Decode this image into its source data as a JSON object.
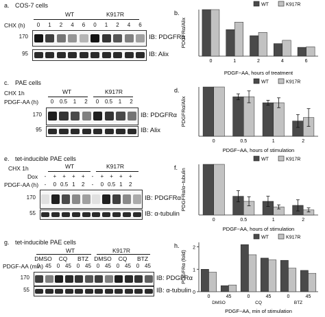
{
  "panels": {
    "a": {
      "label": "a.",
      "title": "COS-7 cells",
      "treatment_label": "CHX (h)",
      "groups": [
        "WT",
        "K917R"
      ],
      "lanes": [
        "0",
        "1",
        "2",
        "4",
        "6",
        "0",
        "1",
        "2",
        "4",
        "6"
      ],
      "blots": [
        {
          "mw": "170",
          "ib": "IB: PDGFRα",
          "intensity": [
            1.0,
            0.8,
            0.55,
            0.4,
            0.25,
            1.0,
            0.85,
            0.7,
            0.5,
            0.35
          ]
        },
        {
          "mw": "95",
          "ib": "IB: Alix",
          "intensity": [
            0.9,
            0.9,
            0.9,
            0.9,
            0.9,
            0.9,
            0.9,
            0.9,
            0.9,
            0.9
          ]
        }
      ]
    },
    "c": {
      "label": "c.",
      "title": "PAE cells",
      "treatment_label": "CHX 1h",
      "row_label": "PDGF-AA (h)",
      "groups": [
        "WT",
        "K917R"
      ],
      "lanes": [
        "0",
        "0.5",
        "1",
        "2",
        "0",
        "0.5",
        "1",
        "2"
      ],
      "blots": [
        {
          "mw": "170",
          "ib": "IB: PDGFRα",
          "intensity": [
            0.95,
            0.85,
            0.75,
            0.5,
            0.95,
            0.85,
            0.75,
            0.55
          ]
        },
        {
          "mw": "95",
          "ib": "IB: Alix",
          "intensity": [
            0.9,
            0.9,
            0.9,
            0.9,
            0.9,
            0.9,
            0.9,
            0.9
          ]
        }
      ]
    },
    "e": {
      "label": "e.",
      "title": "tet-inducible PAE cells",
      "treatment_label": "CHX 1h",
      "row_labels": [
        "Dox",
        "PDGF-AA (h)"
      ],
      "groups": [
        "WT",
        "K917R"
      ],
      "dox": [
        "-",
        "+",
        "+",
        "+",
        "+",
        "-",
        "+",
        "+",
        "+",
        "+"
      ],
      "lanes": [
        "-",
        "0",
        "0.5",
        "1",
        "2",
        "-",
        "0",
        "0.5",
        "1",
        "2"
      ],
      "blots": [
        {
          "mw": "170",
          "ib": "IB: PDGFRα",
          "intensity": [
            0.05,
            0.95,
            0.75,
            0.45,
            0.35,
            0.05,
            0.95,
            0.8,
            0.45,
            0.3
          ]
        },
        {
          "mw": "55",
          "ib": "IB: α-tubulin",
          "intensity": [
            0.9,
            0.9,
            0.9,
            0.9,
            0.9,
            0.9,
            0.9,
            0.9,
            0.9,
            0.9
          ]
        }
      ]
    },
    "g": {
      "label": "g.",
      "title": "tet-inducible PAE cells",
      "row_label": "PDGF-AA (min)",
      "groups": [
        "WT",
        "K917R"
      ],
      "treatments": [
        "DMSO",
        "CQ",
        "BTZ",
        "DMSO",
        "CQ",
        "BTZ"
      ],
      "lanes": [
        "0",
        "45",
        "0",
        "45",
        "0",
        "45",
        "0",
        "45",
        "0",
        "45",
        "0",
        "45"
      ],
      "blots": [
        {
          "mw": "170",
          "ib": "IB: PDGFRα",
          "intensity": [
            0.8,
            0.5,
            0.95,
            0.9,
            0.85,
            0.7,
            0.8,
            0.5,
            0.95,
            0.9,
            0.85,
            0.65
          ]
        },
        {
          "mw": "55",
          "ib": "IB: α-tubulin",
          "intensity": [
            0.9,
            0.9,
            0.9,
            0.9,
            0.9,
            0.9,
            0.9,
            0.9,
            0.9,
            0.9,
            0.9,
            0.9
          ]
        }
      ]
    }
  },
  "colors": {
    "wt": "#4a4a4a",
    "k917r": "#c2c2c2",
    "axis": "#222222"
  },
  "chart_data": [
    {
      "id": "b",
      "label": "b.",
      "type": "bar",
      "categories": [
        "0",
        "1",
        "2",
        "4",
        "6"
      ],
      "series": [
        {
          "name": "WT",
          "values": [
            1.0,
            0.57,
            0.44,
            0.27,
            0.19
          ]
        },
        {
          "name": "K917R",
          "values": [
            1.0,
            0.73,
            0.51,
            0.34,
            0.2
          ]
        }
      ],
      "xlabel": "PDGF−AA, hours of treatment",
      "ylabel": "PDGFRα/Alix",
      "ylim": [
        0,
        1.0
      ],
      "legend": "top"
    },
    {
      "id": "d",
      "label": "d.",
      "type": "bar",
      "categories": [
        "0",
        "0.5",
        "1",
        "2"
      ],
      "series": [
        {
          "name": "WT",
          "values": [
            1.0,
            0.8,
            0.68,
            0.31
          ],
          "errors": [
            0,
            0.06,
            0.05,
            0.13
          ]
        },
        {
          "name": "K917R",
          "values": [
            1.0,
            0.8,
            0.68,
            0.38
          ],
          "errors": [
            0,
            0.12,
            0.1,
            0.18
          ]
        }
      ],
      "xlabel": "PDGF−AA, hours of stimulation",
      "ylabel": "PDGFRα/Alix",
      "ylim": [
        0,
        1.0
      ],
      "legend": "top"
    },
    {
      "id": "f",
      "label": "f.",
      "type": "bar",
      "categories": [
        "0",
        "0.5",
        "1",
        "2"
      ],
      "series": [
        {
          "name": "WT",
          "values": [
            1.0,
            0.37,
            0.27,
            0.19
          ],
          "errors": [
            0,
            0.11,
            0.1,
            0.11
          ]
        },
        {
          "name": "K917R",
          "values": [
            1.0,
            0.27,
            0.16,
            0.1
          ],
          "errors": [
            0,
            0.09,
            0.04,
            0.04
          ]
        }
      ],
      "xlabel": "PDGF−AA, hours of stimulation",
      "ylabel": "PDGFRα/α−tubulin",
      "ylim": [
        0,
        1.0
      ],
      "legend": "top"
    },
    {
      "id": "h",
      "label": "h.",
      "type": "bar",
      "categories": [
        "0",
        "45",
        "0",
        "45",
        "0",
        "45"
      ],
      "groups": [
        "DMSO",
        "CQ",
        "BTZ"
      ],
      "series": [
        {
          "name": "WT",
          "values": [
            1.0,
            0.27,
            2.1,
            1.5,
            1.4,
            0.95
          ]
        },
        {
          "name": "K917R",
          "values": [
            0.87,
            0.3,
            1.65,
            1.42,
            1.05,
            0.82
          ]
        }
      ],
      "xlabel": "PDGF−AA, min of stimulation",
      "ylabel": "PDGFRα (fold)",
      "ylim": [
        0,
        2.2
      ],
      "yticks": [
        0,
        1,
        2
      ],
      "legend": "top"
    }
  ]
}
